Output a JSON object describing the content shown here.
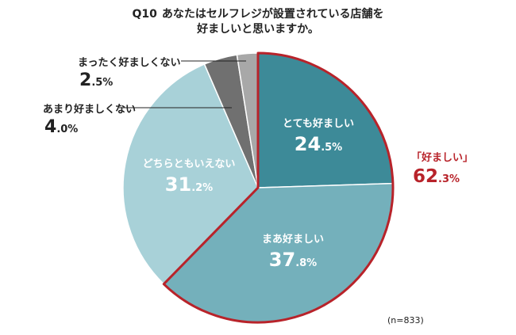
{
  "title": {
    "number": "Q10",
    "line1": "あなたはセルフレジが設置されている店舗を",
    "line2": "好ましいと思いますか。"
  },
  "note": "(n=833)",
  "chart_data": {
    "type": "pie",
    "title": "Q10 あなたはセルフレジが設置されている店舗を好ましいと思いますか。",
    "start_angle_deg": 0,
    "direction": "clockwise",
    "slices": [
      {
        "label": "とても好ましい",
        "value": 24.5,
        "int": "24",
        "dec": ".5",
        "unit": "%",
        "color": "#3d8a98",
        "label_pos": "inside"
      },
      {
        "label": "まあ好ましい",
        "value": 37.8,
        "int": "37",
        "dec": ".8",
        "unit": "%",
        "color": "#74b0bb",
        "label_pos": "inside"
      },
      {
        "label": "どちらともいえない",
        "value": 31.2,
        "int": "31",
        "dec": ".2",
        "unit": "%",
        "color": "#a8d1d8",
        "label_pos": "inside"
      },
      {
        "label": "あまり好ましくない",
        "value": 4.0,
        "int": "4",
        "dec": ".0",
        "unit": "%",
        "color": "#707070",
        "label_pos": "outside"
      },
      {
        "label": "まったく好ましくない",
        "value": 2.5,
        "int": "2",
        "dec": ".5",
        "unit": "%",
        "color": "#a8a8a8",
        "label_pos": "outside"
      }
    ],
    "group_highlight": {
      "label": "「好ましい」",
      "int": "62",
      "dec": ".3",
      "unit": "%",
      "color": "#b8232a",
      "slices": [
        0,
        1
      ]
    }
  }
}
